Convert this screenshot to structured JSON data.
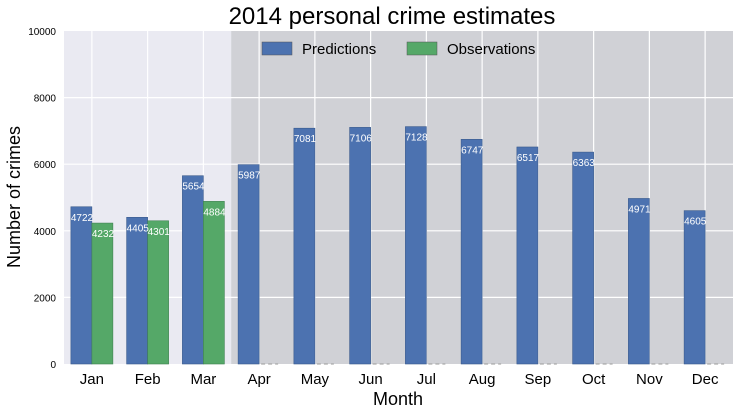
{
  "chart_data": {
    "type": "bar",
    "title": "2014 personal crime estimates",
    "xlabel": "Month",
    "ylabel": "Number of crimes",
    "ylim": [
      0,
      10000
    ],
    "yticks": [
      0,
      2000,
      4000,
      6000,
      8000,
      10000
    ],
    "grid": true,
    "legend_placement": "top-center",
    "shaded_region_start_category": "Apr",
    "categories": [
      "Jan",
      "Feb",
      "Mar",
      "Apr",
      "May",
      "Jun",
      "Jul",
      "Aug",
      "Sep",
      "Oct",
      "Nov",
      "Dec"
    ],
    "series": [
      {
        "name": "Predictions",
        "color": "#4c72b0",
        "values": [
          4722,
          4405,
          5654,
          5987,
          7081,
          7106,
          7128,
          6747,
          6517,
          6363,
          4971,
          4605
        ]
      },
      {
        "name": "Observations",
        "color": "#55a868",
        "values": [
          4232,
          4301,
          4884,
          null,
          null,
          null,
          null,
          null,
          null,
          null,
          null,
          null
        ]
      }
    ],
    "colors": {
      "plot_bg": "#eaeaf2",
      "shade": "#d0d1d6",
      "grid": "#ffffff"
    }
  }
}
